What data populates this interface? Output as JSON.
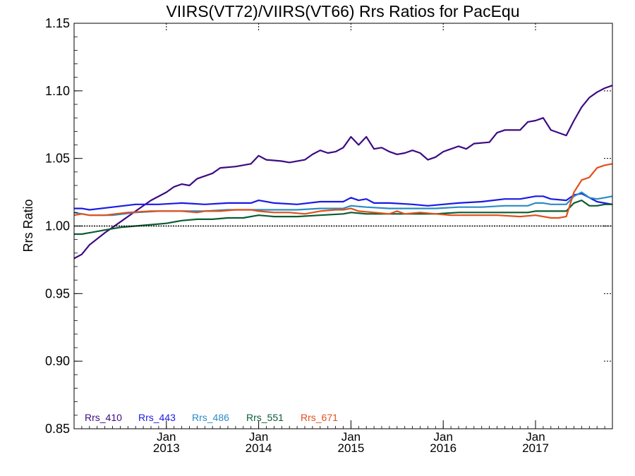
{
  "chart_data": {
    "type": "line",
    "title": "VIIRS(VT72)/VIIRS(VT66)  Rrs Ratios for PacEqu",
    "xlabel": "",
    "ylabel": "Rrs Ratio",
    "ylim": [
      0.85,
      1.15
    ],
    "xlim": [
      "2012-01",
      "2017-11"
    ],
    "yticks": [
      "0.85",
      "0.90",
      "0.95",
      "1.00",
      "1.05",
      "1.10",
      "1.15"
    ],
    "xticks": [
      {
        "month": "Jan",
        "year": "2013",
        "date": "2013-01"
      },
      {
        "month": "Jan",
        "year": "2014",
        "date": "2014-01"
      },
      {
        "month": "Jan",
        "year": "2015",
        "date": "2015-01"
      },
      {
        "month": "Jan",
        "year": "2016",
        "date": "2016-01"
      },
      {
        "month": "Jan",
        "year": "2017",
        "date": "2017-01"
      }
    ],
    "reference_line": 1.0,
    "grid": false,
    "legend_position": "bottom-left",
    "series": [
      {
        "name": "Rrs_410",
        "color": "#3d0a82",
        "points": [
          [
            "2012-01",
            0.976
          ],
          [
            "2012-02",
            0.979
          ],
          [
            "2012-03",
            0.986
          ],
          [
            "2012-05",
            0.995
          ],
          [
            "2012-07",
            1.003
          ],
          [
            "2012-09",
            1.011
          ],
          [
            "2012-11",
            1.019
          ],
          [
            "2013-01",
            1.025
          ],
          [
            "2013-02",
            1.029
          ],
          [
            "2013-03",
            1.031
          ],
          [
            "2013-04",
            1.03
          ],
          [
            "2013-05",
            1.035
          ],
          [
            "2013-07",
            1.039
          ],
          [
            "2013-08",
            1.043
          ],
          [
            "2013-10",
            1.044
          ],
          [
            "2013-12",
            1.046
          ],
          [
            "2014-01",
            1.052
          ],
          [
            "2014-02",
            1.049
          ],
          [
            "2014-04",
            1.048
          ],
          [
            "2014-05",
            1.047
          ],
          [
            "2014-07",
            1.049
          ],
          [
            "2014-08",
            1.053
          ],
          [
            "2014-09",
            1.056
          ],
          [
            "2014-10",
            1.054
          ],
          [
            "2014-11",
            1.055
          ],
          [
            "2014-12",
            1.058
          ],
          [
            "2015-01",
            1.066
          ],
          [
            "2015-02",
            1.06
          ],
          [
            "2015-03",
            1.066
          ],
          [
            "2015-04",
            1.057
          ],
          [
            "2015-05",
            1.058
          ],
          [
            "2015-06",
            1.055
          ],
          [
            "2015-07",
            1.053
          ],
          [
            "2015-08",
            1.054
          ],
          [
            "2015-09",
            1.056
          ],
          [
            "2015-10",
            1.054
          ],
          [
            "2015-11",
            1.049
          ],
          [
            "2015-12",
            1.051
          ],
          [
            "2016-01",
            1.055
          ],
          [
            "2016-03",
            1.059
          ],
          [
            "2016-04",
            1.057
          ],
          [
            "2016-05",
            1.061
          ],
          [
            "2016-07",
            1.062
          ],
          [
            "2016-08",
            1.069
          ],
          [
            "2016-09",
            1.071
          ],
          [
            "2016-11",
            1.071
          ],
          [
            "2016-12",
            1.077
          ],
          [
            "2017-01",
            1.078
          ],
          [
            "2017-02",
            1.08
          ],
          [
            "2017-03",
            1.071
          ],
          [
            "2017-05",
            1.067
          ],
          [
            "2017-06",
            1.078
          ],
          [
            "2017-07",
            1.088
          ],
          [
            "2017-08",
            1.095
          ],
          [
            "2017-09",
            1.099
          ],
          [
            "2017-10",
            1.102
          ],
          [
            "2017-11",
            1.104
          ]
        ]
      },
      {
        "name": "Rrs_443",
        "color": "#1a1ae6",
        "points": [
          [
            "2012-01",
            1.013
          ],
          [
            "2012-02",
            1.013
          ],
          [
            "2012-03",
            1.012
          ],
          [
            "2012-06",
            1.014
          ],
          [
            "2012-09",
            1.016
          ],
          [
            "2012-12",
            1.016
          ],
          [
            "2013-03",
            1.017
          ],
          [
            "2013-06",
            1.016
          ],
          [
            "2013-09",
            1.017
          ],
          [
            "2013-12",
            1.017
          ],
          [
            "2014-01",
            1.019
          ],
          [
            "2014-03",
            1.017
          ],
          [
            "2014-06",
            1.016
          ],
          [
            "2014-09",
            1.018
          ],
          [
            "2014-12",
            1.018
          ],
          [
            "2015-01",
            1.021
          ],
          [
            "2015-02",
            1.019
          ],
          [
            "2015-03",
            1.02
          ],
          [
            "2015-04",
            1.017
          ],
          [
            "2015-06",
            1.017
          ],
          [
            "2015-09",
            1.016
          ],
          [
            "2015-11",
            1.015
          ],
          [
            "2016-01",
            1.016
          ],
          [
            "2016-03",
            1.017
          ],
          [
            "2016-06",
            1.018
          ],
          [
            "2016-09",
            1.02
          ],
          [
            "2016-11",
            1.02
          ],
          [
            "2017-01",
            1.022
          ],
          [
            "2017-02",
            1.022
          ],
          [
            "2017-03",
            1.02
          ],
          [
            "2017-05",
            1.019
          ],
          [
            "2017-06",
            1.023
          ],
          [
            "2017-07",
            1.024
          ],
          [
            "2017-08",
            1.021
          ],
          [
            "2017-09",
            1.018
          ],
          [
            "2017-10",
            1.017
          ],
          [
            "2017-11",
            1.016
          ]
        ]
      },
      {
        "name": "Rrs_486",
        "color": "#2b8cc4",
        "points": [
          [
            "2012-01",
            1.01
          ],
          [
            "2012-02",
            1.009
          ],
          [
            "2012-03",
            1.008
          ],
          [
            "2012-06",
            1.008
          ],
          [
            "2012-09",
            1.01
          ],
          [
            "2012-12",
            1.011
          ],
          [
            "2013-03",
            1.011
          ],
          [
            "2013-06",
            1.011
          ],
          [
            "2013-09",
            1.012
          ],
          [
            "2013-12",
            1.012
          ],
          [
            "2014-03",
            1.012
          ],
          [
            "2014-06",
            1.012
          ],
          [
            "2014-09",
            1.013
          ],
          [
            "2014-12",
            1.013
          ],
          [
            "2015-01",
            1.015
          ],
          [
            "2015-03",
            1.014
          ],
          [
            "2015-06",
            1.013
          ],
          [
            "2015-09",
            1.013
          ],
          [
            "2015-12",
            1.013
          ],
          [
            "2016-03",
            1.014
          ],
          [
            "2016-06",
            1.014
          ],
          [
            "2016-09",
            1.015
          ],
          [
            "2016-12",
            1.015
          ],
          [
            "2017-01",
            1.017
          ],
          [
            "2017-02",
            1.017
          ],
          [
            "2017-03",
            1.016
          ],
          [
            "2017-05",
            1.016
          ],
          [
            "2017-06",
            1.022
          ],
          [
            "2017-07",
            1.025
          ],
          [
            "2017-08",
            1.021
          ],
          [
            "2017-09",
            1.02
          ],
          [
            "2017-10",
            1.021
          ],
          [
            "2017-11",
            1.022
          ]
        ]
      },
      {
        "name": "Rrs_551",
        "color": "#0a5c32",
        "points": [
          [
            "2012-01",
            0.994
          ],
          [
            "2012-02",
            0.994
          ],
          [
            "2012-03",
            0.995
          ],
          [
            "2012-05",
            0.997
          ],
          [
            "2012-07",
            0.999
          ],
          [
            "2012-09",
            1.0
          ],
          [
            "2012-11",
            1.001
          ],
          [
            "2013-01",
            1.002
          ],
          [
            "2013-03",
            1.004
          ],
          [
            "2013-05",
            1.005
          ],
          [
            "2013-07",
            1.005
          ],
          [
            "2013-09",
            1.006
          ],
          [
            "2013-11",
            1.006
          ],
          [
            "2014-01",
            1.008
          ],
          [
            "2014-03",
            1.007
          ],
          [
            "2014-06",
            1.007
          ],
          [
            "2014-09",
            1.008
          ],
          [
            "2014-12",
            1.009
          ],
          [
            "2015-01",
            1.01
          ],
          [
            "2015-03",
            1.009
          ],
          [
            "2015-06",
            1.009
          ],
          [
            "2015-09",
            1.009
          ],
          [
            "2015-12",
            1.009
          ],
          [
            "2016-03",
            1.01
          ],
          [
            "2016-06",
            1.01
          ],
          [
            "2016-09",
            1.01
          ],
          [
            "2016-12",
            1.01
          ],
          [
            "2017-01",
            1.011
          ],
          [
            "2017-03",
            1.011
          ],
          [
            "2017-05",
            1.011
          ],
          [
            "2017-06",
            1.017
          ],
          [
            "2017-07",
            1.019
          ],
          [
            "2017-08",
            1.015
          ],
          [
            "2017-09",
            1.015
          ],
          [
            "2017-10",
            1.016
          ],
          [
            "2017-11",
            1.016
          ]
        ]
      },
      {
        "name": "Rrs_671",
        "color": "#e0501a",
        "points": [
          [
            "2012-01",
            1.008
          ],
          [
            "2012-02",
            1.009
          ],
          [
            "2012-03",
            1.008
          ],
          [
            "2012-05",
            1.008
          ],
          [
            "2012-08",
            1.01
          ],
          [
            "2012-11",
            1.011
          ],
          [
            "2013-01",
            1.011
          ],
          [
            "2013-03",
            1.011
          ],
          [
            "2013-05",
            1.01
          ],
          [
            "2013-06",
            1.011
          ],
          [
            "2013-08",
            1.011
          ],
          [
            "2013-10",
            1.012
          ],
          [
            "2013-12",
            1.012
          ],
          [
            "2014-01",
            1.011
          ],
          [
            "2014-03",
            1.01
          ],
          [
            "2014-05",
            1.01
          ],
          [
            "2014-07",
            1.009
          ],
          [
            "2014-09",
            1.011
          ],
          [
            "2014-11",
            1.012
          ],
          [
            "2014-12",
            1.012
          ],
          [
            "2015-01",
            1.013
          ],
          [
            "2015-02",
            1.011
          ],
          [
            "2015-04",
            1.01
          ],
          [
            "2015-06",
            1.009
          ],
          [
            "2015-07",
            1.011
          ],
          [
            "2015-08",
            1.009
          ],
          [
            "2015-10",
            1.01
          ],
          [
            "2015-12",
            1.009
          ],
          [
            "2016-02",
            1.008
          ],
          [
            "2016-05",
            1.008
          ],
          [
            "2016-08",
            1.008
          ],
          [
            "2016-11",
            1.007
          ],
          [
            "2017-01",
            1.008
          ],
          [
            "2017-02",
            1.007
          ],
          [
            "2017-03",
            1.006
          ],
          [
            "2017-04",
            1.006
          ],
          [
            "2017-05",
            1.007
          ],
          [
            "2017-06",
            1.025
          ],
          [
            "2017-07",
            1.034
          ],
          [
            "2017-08",
            1.036
          ],
          [
            "2017-09",
            1.043
          ],
          [
            "2017-10",
            1.045
          ],
          [
            "2017-11",
            1.046
          ]
        ]
      }
    ]
  }
}
